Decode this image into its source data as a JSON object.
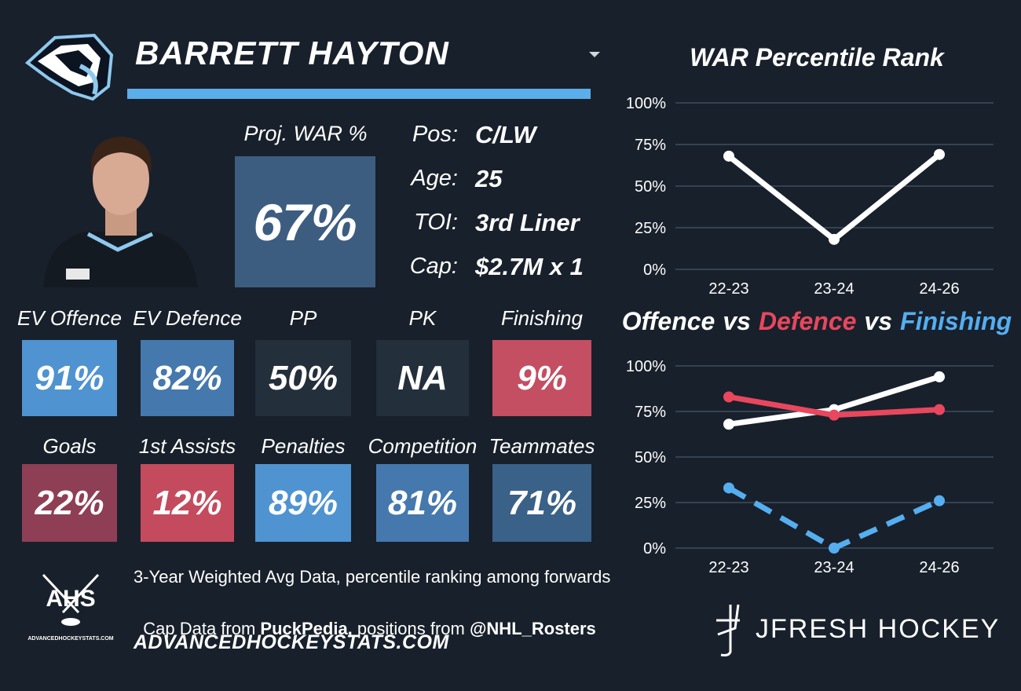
{
  "header": {
    "player": "BARRETT HAYTON"
  },
  "proj_war": {
    "label": "Proj. WAR %",
    "value": "67%",
    "color": "#3d5d80"
  },
  "info": [
    {
      "label": "Pos:",
      "value": "C/LW"
    },
    {
      "label": "Age:",
      "value": "25"
    },
    {
      "label": "TOI:",
      "value": "3rd Liner"
    },
    {
      "label": "Cap:",
      "value": "$2.7M x 1"
    }
  ],
  "tiles": [
    {
      "label": "EV Offence",
      "value": "91%",
      "color": "#4f93d0"
    },
    {
      "label": "EV Defence",
      "value": "82%",
      "color": "#4578ad"
    },
    {
      "label": "PP",
      "value": "50%",
      "color": "#242f3c"
    },
    {
      "label": "PK",
      "value": "NA",
      "color": "#242f3c"
    },
    {
      "label": "Finishing",
      "value": "9%",
      "color": "#c44f62"
    },
    {
      "label": "Goals",
      "value": "22%",
      "color": "#8e3f55"
    },
    {
      "label": "1st Assists",
      "value": "12%",
      "color": "#c44b5d"
    },
    {
      "label": "Penalties",
      "value": "89%",
      "color": "#4f93d0"
    },
    {
      "label": "Competition",
      "value": "81%",
      "color": "#4578ad"
    },
    {
      "label": "Teammates",
      "value": "71%",
      "color": "#3a6188"
    }
  ],
  "footer": {
    "note": "3-Year Weighted Avg Data, percentile ranking among forwards",
    "sources": [
      "Cap Data from ",
      "PuckPedia,",
      " positions from ",
      "@NHL_Rosters"
    ],
    "site": "ADVANCEDHOCKEYSTATS.COM",
    "ahs_logo": "AHS",
    "ahs_logo_sub": "ADVANCEDHOCKEYSTATS.COM",
    "brand": "JFRESH HOCKEY"
  },
  "chart_data": [
    {
      "type": "line",
      "title": "WAR Percentile Rank",
      "categories": [
        "22-23",
        "23-24",
        "24-26"
      ],
      "values": [
        68,
        18,
        69
      ],
      "color": "#ffffff",
      "ylim": [
        0,
        100
      ],
      "yticks": [
        {
          "value": 0,
          "label": "0%"
        },
        {
          "value": 25,
          "label": "25%"
        },
        {
          "value": 50,
          "label": "50%"
        },
        {
          "value": 75,
          "label": "75%"
        },
        {
          "value": 100,
          "label": "100%"
        }
      ],
      "grid": true
    },
    {
      "type": "line",
      "title_separator": "vs",
      "categories": [
        "22-23",
        "23-24",
        "24-26"
      ],
      "series": [
        {
          "name": "Offence",
          "color": "#ffffff",
          "values": [
            68,
            76,
            94
          ]
        },
        {
          "name": "Defence",
          "color": "#e8475d",
          "values": [
            83,
            73,
            76
          ]
        },
        {
          "name": "Finishing",
          "color": "#55aef0",
          "values": [
            33,
            0,
            26
          ],
          "dashed": true
        }
      ],
      "ylim": [
        0,
        100
      ],
      "yticks": [
        {
          "value": 0,
          "label": "0%"
        },
        {
          "value": 25,
          "label": "25%"
        },
        {
          "value": 50,
          "label": "50%"
        },
        {
          "value": 75,
          "label": "75%"
        },
        {
          "value": 100,
          "label": "100%"
        }
      ],
      "grid": true
    }
  ]
}
